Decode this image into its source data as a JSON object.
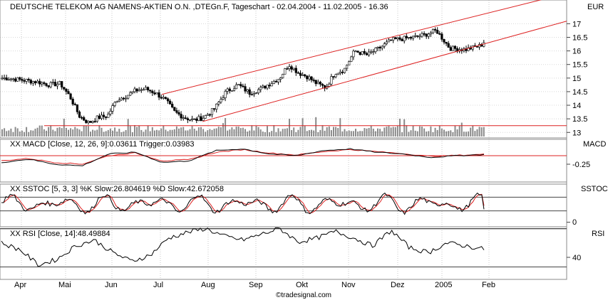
{
  "chart_data": [
    {
      "type": "candlestick",
      "title": "DEUTSCHE TELEKOM AG NAMENS-AKTIEN O.N. ,DTEGn.F, Tageschart - 02.04.2004 - 11.02.2005 - 16.36",
      "ylabel": "EUR",
      "y_ticks": [
        "17",
        "16.5",
        "16",
        "15.5",
        "15",
        "14.5",
        "14",
        "13.5",
        "13"
      ],
      "ylim": [
        12.85,
        17.35
      ],
      "x_labels": [
        "Apr",
        "Mai",
        "Jun",
        "Jul",
        "Aug",
        "Sep",
        "Okt",
        "Nov",
        "Dez",
        "2005",
        "Feb"
      ],
      "close_path": [
        [
          "Apr",
          15.0
        ],
        [
          "Apr",
          14.95
        ],
        [
          "Apr",
          14.9
        ],
        [
          "Apr",
          14.85
        ],
        [
          "Apr",
          14.75
        ],
        [
          "Apr",
          14.8
        ],
        [
          "Mai",
          14.3
        ],
        [
          "Mai",
          13.6
        ],
        [
          "Mai",
          13.35
        ],
        [
          "Mai",
          13.55
        ],
        [
          "Mai",
          13.6
        ],
        [
          "Jun",
          14.2
        ],
        [
          "Jun",
          14.35
        ],
        [
          "Jun",
          14.55
        ],
        [
          "Jun",
          14.6
        ],
        [
          "Jun",
          14.45
        ],
        [
          "Jul",
          14.2
        ],
        [
          "Jul",
          13.75
        ],
        [
          "Jul",
          13.55
        ],
        [
          "Jul",
          13.45
        ],
        [
          "Jul",
          13.55
        ],
        [
          "Aug",
          13.85
        ],
        [
          "Aug",
          14.5
        ],
        [
          "Aug",
          14.75
        ],
        [
          "Aug",
          14.45
        ],
        [
          "Sep",
          14.6
        ],
        [
          "Sep",
          14.8
        ],
        [
          "Sep",
          15.0
        ],
        [
          "Sep",
          15.5
        ],
        [
          "Sep",
          15.2
        ],
        [
          "Okt",
          15.05
        ],
        [
          "Okt",
          14.8
        ],
        [
          "Okt",
          14.65
        ],
        [
          "Okt",
          15.2
        ],
        [
          "Okt",
          15.3
        ],
        [
          "Nov",
          16.0
        ],
        [
          "Nov",
          15.85
        ],
        [
          "Nov",
          16.1
        ],
        [
          "Nov",
          16.4
        ],
        [
          "Dez",
          16.45
        ],
        [
          "Dez",
          16.5
        ],
        [
          "Dez",
          16.6
        ],
        [
          "Dez",
          16.75
        ],
        [
          "2005",
          16.1
        ],
        [
          "2005",
          16.05
        ],
        [
          "2005",
          16.2
        ],
        [
          "Feb",
          16.55
        ],
        [
          "Feb",
          16.5
        ],
        [
          "Feb",
          16.36
        ]
      ],
      "support_line": 13.25,
      "trend_channel": {
        "upper": [
          [
            "Jul",
            14.4
          ],
          [
            "Feb",
            18.2
          ]
        ],
        "lower": [
          [
            "Aug",
            13.4
          ],
          [
            "Feb",
            17.2
          ]
        ]
      },
      "has_volume_bars": true,
      "grid": "vertical dotted at month boundaries",
      "colors": {
        "channel": "#dd2222",
        "candles": "#000000",
        "volume": "#888888"
      }
    },
    {
      "type": "line",
      "title": "XX MACD [Close, 12, 26, 9]:0.03611 Trigger:0.03983",
      "ylabel": "MACD",
      "y_ticks": [
        "-0.25"
      ],
      "series": [
        {
          "name": "MACD",
          "color": "#000000",
          "values": [
            -0.2,
            -0.1,
            -0.25,
            -0.3,
            0.05,
            0.1,
            -0.2,
            -0.15,
            0.15,
            0.2,
            0.05,
            0.0,
            0.15,
            0.2,
            0.1,
            0.05,
            -0.05,
            0.0,
            0.036
          ]
        },
        {
          "name": "Trigger",
          "color": "#dd2222",
          "values": [
            -0.15,
            -0.08,
            -0.2,
            -0.25,
            0.0,
            0.08,
            -0.15,
            -0.12,
            0.1,
            0.18,
            0.08,
            0.02,
            0.12,
            0.18,
            0.12,
            0.06,
            -0.02,
            0.01,
            0.04
          ]
        }
      ]
    },
    {
      "type": "line",
      "title": "XX SSTOC [5, 3, 3] %K Slow:26.804619 %D Slow:42.672058",
      "ylabel": "SSTOC",
      "y_ticks": [
        "0"
      ],
      "reference_levels": [
        80,
        20
      ],
      "series": [
        {
          "name": "%K Slow",
          "color": "#000000"
        },
        {
          "name": "%D Slow",
          "color": "#dd2222"
        }
      ]
    },
    {
      "type": "line",
      "title": "XX RSI [Close, 14]:48.49884",
      "ylabel": "RSI",
      "y_ticks": [
        "40"
      ],
      "reference_levels": [
        70,
        30
      ],
      "series": [
        {
          "name": "RSI",
          "color": "#000000",
          "values": [
            55,
            48,
            32,
            38,
            52,
            58,
            45,
            36,
            42,
            60,
            66,
            70,
            62,
            58,
            64,
            70,
            56,
            60,
            67,
            60,
            52,
            68,
            50,
            45,
            55,
            52,
            48.5
          ]
        }
      ]
    }
  ],
  "watermark": "©tradesignal.com"
}
